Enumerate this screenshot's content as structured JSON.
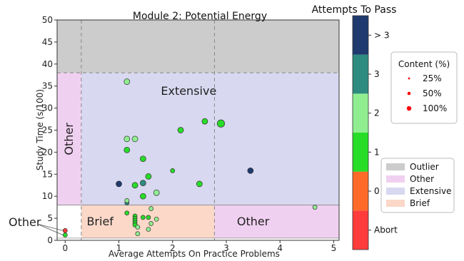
{
  "chart_data": {
    "type": "scatter",
    "title": "Module 2: Potential Energy",
    "xlabel": "Average Attempts On Practice Problems",
    "ylabel": "Study Time (s/100)",
    "xlim": [
      -0.15,
      5.1
    ],
    "ylim": [
      0,
      50
    ],
    "xticks": [
      0,
      1,
      2,
      3,
      4,
      5
    ],
    "yticks": [
      0,
      5,
      10,
      15,
      20,
      25,
      30,
      35,
      40,
      45,
      50
    ],
    "grid": false,
    "regions": [
      {
        "label": "",
        "category": "Outlier",
        "x": [
          -0.15,
          5.1
        ],
        "y": [
          38,
          50
        ],
        "color": "#cccccc"
      },
      {
        "label": "Other",
        "category": "Other",
        "x": [
          -0.15,
          0.3
        ],
        "y": [
          8,
          38
        ],
        "color": "#f0d0f0"
      },
      {
        "label": "Extensive",
        "category": "Extensive",
        "x": [
          0.3,
          5.1
        ],
        "y": [
          8,
          38
        ],
        "color": "#d8d8f0"
      },
      {
        "label": "Brief",
        "category": "Brief",
        "x": [
          0.3,
          2.78
        ],
        "y": [
          0.5,
          8
        ],
        "color": "#fbd8c8"
      },
      {
        "label": "Other",
        "category": "Other",
        "x": [
          2.78,
          5.1
        ],
        "y": [
          0.5,
          8
        ],
        "color": "#f0d0f0"
      }
    ],
    "dashed_lines": {
      "x": [
        0.3,
        2.78
      ],
      "y": [
        38
      ]
    },
    "points": [
      {
        "x": 1.15,
        "y": 36,
        "c": "2",
        "s": 50
      },
      {
        "x": 1.15,
        "y": 23,
        "c": "2",
        "s": 50
      },
      {
        "x": 1.3,
        "y": 23,
        "c": "2",
        "s": 50
      },
      {
        "x": 1.15,
        "y": 20.5,
        "c": "1",
        "s": 50
      },
      {
        "x": 1.45,
        "y": 18.5,
        "c": "1",
        "s": 50
      },
      {
        "x": 1.55,
        "y": 14.5,
        "c": "1",
        "s": 50
      },
      {
        "x": 1.3,
        "y": 12.5,
        "c": "1",
        "s": 50
      },
      {
        "x": 1.45,
        "y": 13,
        "c": "3",
        "s": 50
      },
      {
        "x": 1.0,
        "y": 12.8,
        "c": ">3",
        "s": 50
      },
      {
        "x": 1.15,
        "y": 8.5,
        "c": "3",
        "s": 25
      },
      {
        "x": 1.15,
        "y": 9,
        "c": "2",
        "s": 25
      },
      {
        "x": 1.45,
        "y": 10,
        "c": "1",
        "s": 50
      },
      {
        "x": 1.7,
        "y": 10.8,
        "c": "2",
        "s": 50
      },
      {
        "x": 2.0,
        "y": 15.8,
        "c": "1",
        "s": 25
      },
      {
        "x": 2.15,
        "y": 25,
        "c": "1",
        "s": 50
      },
      {
        "x": 2.6,
        "y": 27,
        "c": "1",
        "s": 50
      },
      {
        "x": 2.9,
        "y": 26.5,
        "c": "1",
        "s": 100
      },
      {
        "x": 2.5,
        "y": 12.8,
        "c": "1",
        "s": 50
      },
      {
        "x": 3.45,
        "y": 15.8,
        "c": ">3",
        "s": 50
      },
      {
        "x": 4.65,
        "y": 7.5,
        "c": "2",
        "s": 25
      },
      {
        "x": 1.15,
        "y": 6.2,
        "c": "1",
        "s": 25
      },
      {
        "x": 1.3,
        "y": 5.5,
        "c": "1",
        "s": 25
      },
      {
        "x": 1.3,
        "y": 5.0,
        "c": "1",
        "s": 25
      },
      {
        "x": 1.3,
        "y": 4.5,
        "c": "1",
        "s": 25
      },
      {
        "x": 1.3,
        "y": 4.0,
        "c": "1",
        "s": 25
      },
      {
        "x": 1.3,
        "y": 3.5,
        "c": "1",
        "s": 25
      },
      {
        "x": 1.45,
        "y": 5.2,
        "c": "1",
        "s": 25
      },
      {
        "x": 1.55,
        "y": 5.2,
        "c": "1",
        "s": 25
      },
      {
        "x": 1.6,
        "y": 3.8,
        "c": "2",
        "s": 25
      },
      {
        "x": 1.7,
        "y": 4.8,
        "c": "2",
        "s": 25
      },
      {
        "x": 1.6,
        "y": 7.2,
        "c": "2",
        "s": 25
      },
      {
        "x": 1.35,
        "y": 3.0,
        "c": "2",
        "s": 25
      },
      {
        "x": 1.55,
        "y": 2.5,
        "c": "2",
        "s": 25
      },
      {
        "x": 1.35,
        "y": 1.5,
        "c": "2",
        "s": 25
      },
      {
        "x": 0.0,
        "y": 2.2,
        "c": "Abort",
        "s": 25
      },
      {
        "x": 0.0,
        "y": 1.2,
        "c": "1",
        "s": 25
      }
    ],
    "colorbar": {
      "title": "Attempts To Pass",
      "levels": [
        {
          "label": "Abort",
          "color": "#ff3b3b"
        },
        {
          "label": "0",
          "color": "#ff6a28"
        },
        {
          "label": "1",
          "color": "#28dd28"
        },
        {
          "label": "2",
          "color": "#90ee90"
        },
        {
          "label": "3",
          "color": "#2e8b80"
        },
        {
          "label": "> 3",
          "color": "#1e3a6e"
        }
      ]
    },
    "size_legend": {
      "title": "Content (%)",
      "placement": "right",
      "entries": [
        {
          "label": "25%",
          "s": 25
        },
        {
          "label": "50%",
          "s": 50
        },
        {
          "label": "100%",
          "s": 100
        }
      ],
      "color": "#ff0000"
    },
    "region_legend": {
      "placement": "lower-right",
      "entries": [
        {
          "label": "Outlier",
          "color": "#cccccc"
        },
        {
          "label": "Other",
          "color": "#f0d0f0"
        },
        {
          "label": "Extensive",
          "color": "#d8d8f0"
        },
        {
          "label": "Brief",
          "color": "#fbd8c8"
        }
      ]
    },
    "annotation": {
      "text": "Other"
    }
  }
}
